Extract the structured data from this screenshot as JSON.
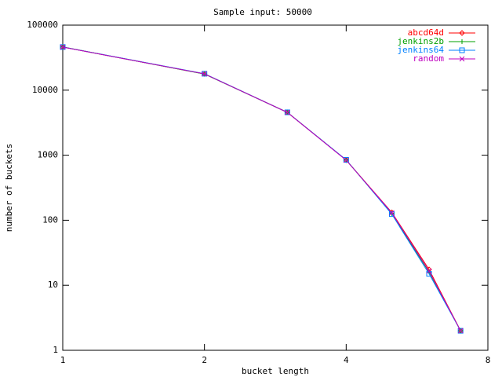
{
  "chart_data": {
    "type": "line",
    "title": "Sample input: 50000",
    "xlabel": "bucket length",
    "ylabel": "number of buckets",
    "x": [
      1,
      2,
      3,
      4,
      5,
      6,
      7
    ],
    "series": [
      {
        "name": "abcd64d",
        "color": "#ff0000",
        "marker": "diamond",
        "values": [
          46000,
          17800,
          4570,
          840,
          132,
          17.5,
          2
        ]
      },
      {
        "name": "jenkins2b",
        "color": "#00a000",
        "marker": "plus",
        "values": [
          46200,
          17700,
          4550,
          845,
          127,
          16,
          2
        ]
      },
      {
        "name": "jenkins64",
        "color": "#0080ff",
        "marker": "square",
        "values": [
          46100,
          17900,
          4560,
          850,
          124,
          15,
          2
        ]
      },
      {
        "name": "random",
        "color": "#c000c0",
        "marker": "cross",
        "values": [
          45900,
          17800,
          4540,
          838,
          130,
          16.5,
          2
        ]
      }
    ],
    "xlim": [
      1,
      8
    ],
    "xticks": [
      1,
      2,
      4,
      8
    ],
    "xlog_base": 2,
    "ylim": [
      1,
      100000
    ],
    "yticks": [
      1,
      10,
      100,
      1000,
      10000,
      100000
    ],
    "ylog_base": 10,
    "legend": "top-right"
  }
}
